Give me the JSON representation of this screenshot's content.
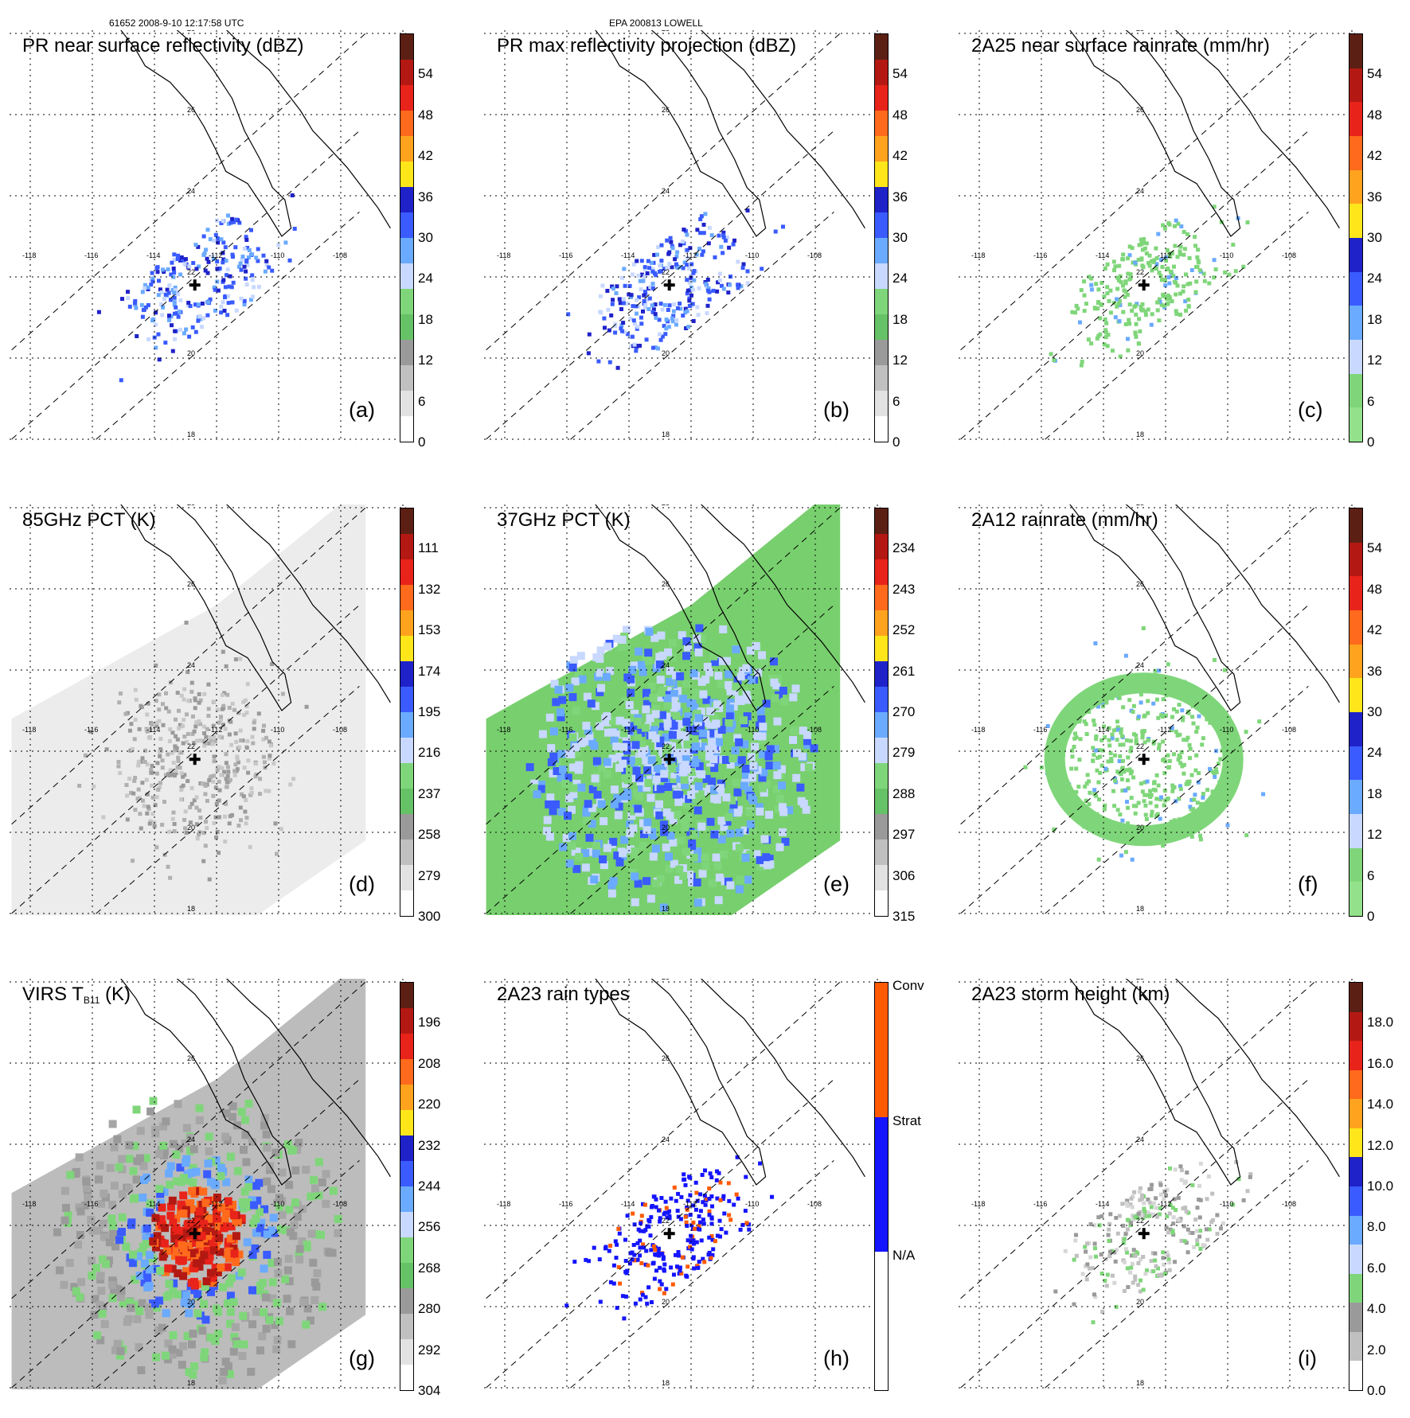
{
  "header": {
    "orbit": "61652 2008-9-10 12:17:58 UTC",
    "storm": "EPA 200813 LOWELL"
  },
  "map_labels": {
    "lons": [
      "-118",
      "-116",
      "-114",
      "-112",
      "-110",
      "-108"
    ],
    "lats": [
      "28",
      "26",
      "24",
      "22",
      "20",
      "18"
    ]
  },
  "panels": [
    {
      "title": "PR near surface reflectivity (dBZ)",
      "label": "(a)",
      "ticks": [
        "54",
        "48",
        "42",
        "36",
        "30",
        "24",
        "18",
        "12",
        "6",
        "0"
      ],
      "palette": "dbz",
      "field": "pr"
    },
    {
      "title": "PR max reflectivity projection (dBZ)",
      "label": "(b)",
      "ticks": [
        "54",
        "48",
        "42",
        "36",
        "30",
        "24",
        "18",
        "12",
        "6",
        "0"
      ],
      "palette": "dbz",
      "field": "prmax"
    },
    {
      "title": "2A25 near surface rainrate (mm/hr)",
      "label": "(c)",
      "ticks": [
        "54",
        "48",
        "42",
        "36",
        "30",
        "24",
        "18",
        "12",
        "6",
        "0"
      ],
      "palette": "rain",
      "field": "rain25"
    },
    {
      "title": "85GHz PCT (K)",
      "label": "(d)",
      "ticks": [
        "111",
        "132",
        "153",
        "174",
        "195",
        "216",
        "237",
        "258",
        "279",
        "300"
      ],
      "palette": "dbz",
      "field": "pct85"
    },
    {
      "title": "37GHz PCT (K)",
      "label": "(e)",
      "ticks": [
        "234",
        "243",
        "252",
        "261",
        "270",
        "279",
        "288",
        "297",
        "306",
        "315"
      ],
      "palette": "dbz",
      "field": "pct37"
    },
    {
      "title": "2A12 rainrate (mm/hr)",
      "label": "(f)",
      "ticks": [
        "54",
        "48",
        "42",
        "36",
        "30",
        "24",
        "18",
        "12",
        "6",
        "0"
      ],
      "palette": "rain",
      "field": "rain12"
    },
    {
      "title_main": "VIRS T",
      "title_sub": "B11",
      "title_rest": " (K)",
      "label": "(g)",
      "ticks": [
        "196",
        "208",
        "220",
        "232",
        "244",
        "256",
        "268",
        "280",
        "292",
        "304"
      ],
      "palette": "dbz",
      "field": "virs"
    },
    {
      "title": "2A23 rain types",
      "label": "(h)",
      "ticks_named": [
        "Conv",
        "Strat",
        "N/A"
      ],
      "palette": "types",
      "field": "types"
    },
    {
      "title": "2A23 storm height (km)",
      "label": "(i)",
      "ticks": [
        "18.0",
        "16.0",
        "14.0",
        "12.0",
        "10.0",
        "8.0",
        "6.0",
        "4.0",
        "2.0",
        "0.0"
      ],
      "palette": "height",
      "field": "height"
    }
  ],
  "palettes": {
    "dbz": [
      "#5c1f14",
      "#b31912",
      "#e8231a",
      "#ff6a1c",
      "#ffa31f",
      "#ffe61a",
      "#1f22c9",
      "#3a5bff",
      "#6aaaff",
      "#c8d8ff",
      "#7fd67a",
      "#66c266",
      "#9a9a9a",
      "#c0c0c0",
      "#e2e2e2",
      "#ffffff"
    ],
    "rain": [
      "#5c1f14",
      "#b31912",
      "#e8231a",
      "#ff6a1c",
      "#ffa31f",
      "#ffe61a",
      "#1f22c9",
      "#3a5bff",
      "#6aaaff",
      "#c8d8ff",
      "#7fd67a",
      "#93e28b"
    ],
    "height": [
      "#5c1f14",
      "#b31912",
      "#e8231a",
      "#ff6a1c",
      "#ffa31f",
      "#ffe61a",
      "#1f22c9",
      "#3a5bff",
      "#6aaaff",
      "#c8d8ff",
      "#7fd67a",
      "#9a9a9a",
      "#c0c0c0",
      "#ffffff"
    ],
    "types": [
      "#ff5a00",
      "#1414ff",
      "#ffffff"
    ]
  }
}
